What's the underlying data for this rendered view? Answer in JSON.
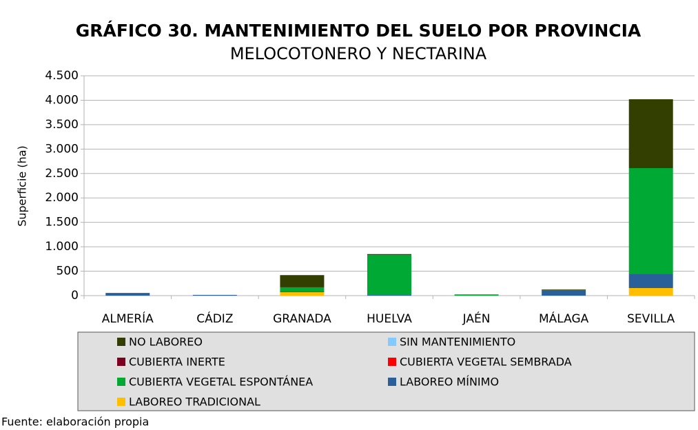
{
  "chart_data": {
    "type": "stacked_bar",
    "title": "GRÁFICO 30. MANTENIMIENTO DEL SUELO POR PROVINCIA",
    "subtitle": "MELOCOTONERO Y NECTARINA",
    "y_label": "Superficie (ha)",
    "source": "Fuente: elaboración propia",
    "categories": [
      "ALMERÍA",
      "CÁDIZ",
      "GRANADA",
      "HUELVA",
      "JAÉN",
      "MÁLAGA",
      "SEVILLA"
    ],
    "series": [
      {
        "name": "LABOREO TRADICIONAL",
        "color": "#ffbf00",
        "values": [
          0,
          0,
          70,
          0,
          0,
          0,
          155
        ]
      },
      {
        "name": "LABOREO MÍNIMO",
        "color": "#2a6099",
        "values": [
          55,
          15,
          15,
          25,
          0,
          110,
          295
        ]
      },
      {
        "name": "CUBIERTA VEGETAL ESPONTÁNEA",
        "color": "#00a933",
        "values": [
          0,
          0,
          85,
          805,
          25,
          0,
          2160
        ]
      },
      {
        "name": "CUBIERTA VEGETAL SEMBRADA",
        "color": "#ff0000",
        "values": [
          0,
          0,
          0,
          0,
          0,
          0,
          0
        ]
      },
      {
        "name": "CUBIERTA INERTE",
        "color": "#7e0021",
        "values": [
          0,
          0,
          0,
          0,
          0,
          0,
          0
        ]
      },
      {
        "name": "SIN MANTENIMIENTO",
        "color": "#83caff",
        "values": [
          0,
          0,
          0,
          0,
          0,
          0,
          0
        ]
      },
      {
        "name": "NO LABOREO",
        "color": "#333f00",
        "values": [
          0,
          0,
          250,
          20,
          0,
          15,
          1410
        ]
      }
    ],
    "ylim": [
      0,
      4500
    ],
    "yticks": [
      0,
      500,
      {
        "value": 1000,
        "label": "1.000"
      },
      {
        "value": 1500,
        "label": "1.500"
      },
      {
        "value": 2000,
        "label": "2.000"
      },
      {
        "value": 2500,
        "label": "2.500"
      },
      {
        "value": 3000,
        "label": "3.000"
      },
      {
        "value": 3500,
        "label": "3.500"
      },
      {
        "value": 4000,
        "label": "4.000"
      },
      {
        "value": 4500,
        "label": "4.500"
      }
    ],
    "grid": true
  }
}
